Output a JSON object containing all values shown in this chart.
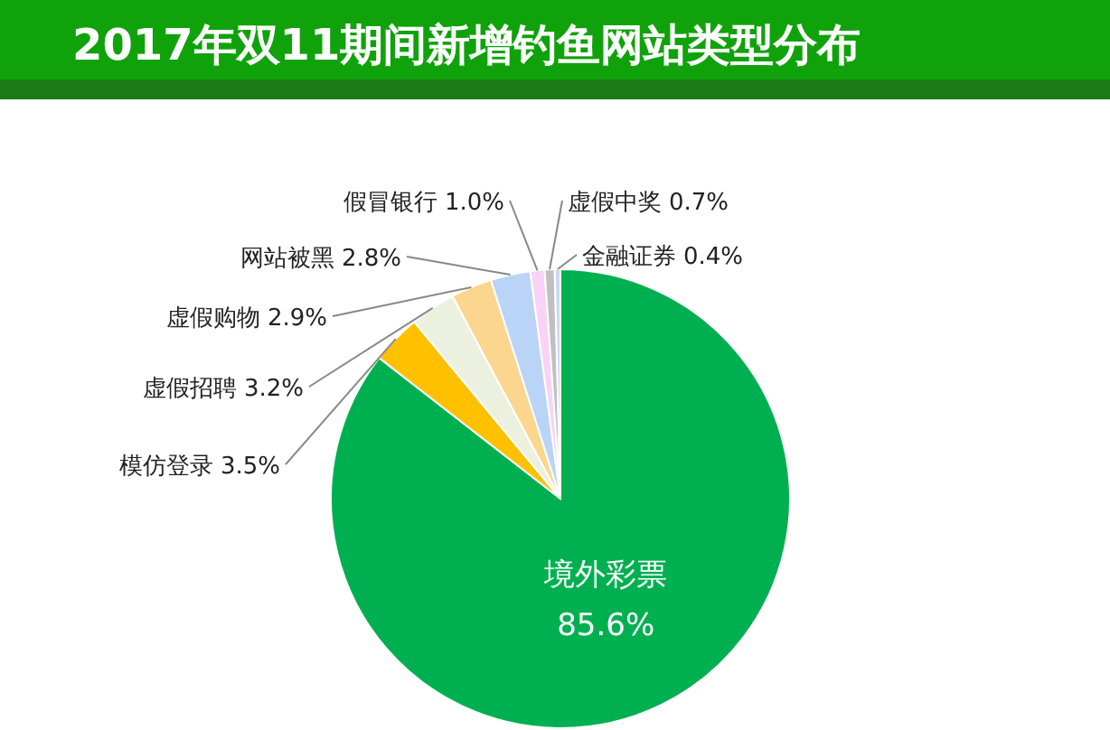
{
  "chart_data": {
    "type": "pie",
    "title": "2017年双11期间新增钓鱼网站类型分布",
    "categories": [
      "境外彩票",
      "模仿登录",
      "虚假招聘",
      "虚假购物",
      "网站被黑",
      "假冒银行",
      "虚假中奖",
      "金融证券"
    ],
    "values": [
      85.6,
      3.5,
      3.2,
      2.9,
      2.8,
      1.0,
      0.7,
      0.4
    ],
    "value_labels": [
      "85.6%",
      "3.5%",
      "3.2%",
      "2.9%",
      "2.8%",
      "1.0%",
      "0.7%",
      "0.4%"
    ],
    "colors": [
      "#00b050",
      "#ffc000",
      "#ebf1de",
      "#fcd68e",
      "#b9d4f7",
      "#f9d3f5",
      "#c0c0c0",
      "#c9d9f2"
    ]
  }
}
